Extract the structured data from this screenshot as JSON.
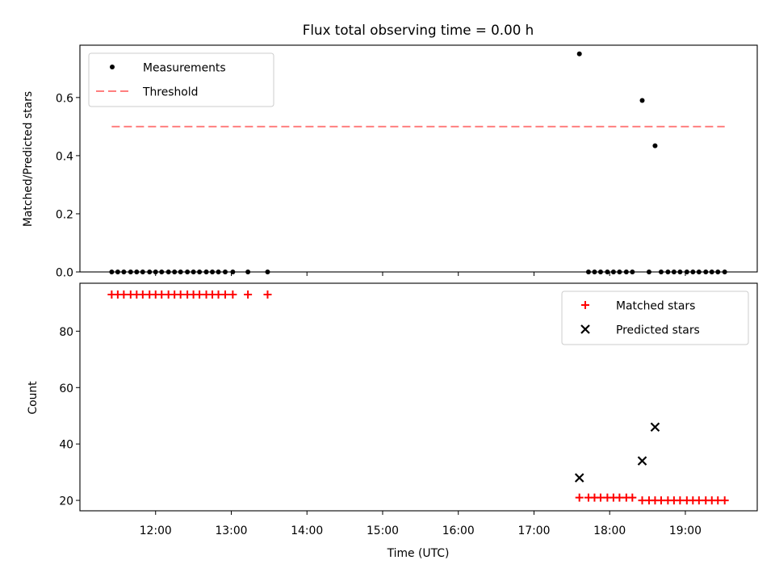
{
  "title": "Flux total observing time = 0.00 h",
  "colors": {
    "threshold": "#ff7f7f",
    "matched": "#ff0000",
    "predicted": "#000000",
    "measurements": "#000000",
    "legend_border": "#cccccc"
  },
  "chart_data": [
    {
      "type": "scatter",
      "ylabel": "Matched/Predicted stars",
      "xlim": [
        11.0,
        19.95
      ],
      "ylim": [
        0,
        0.78
      ],
      "yticks": [
        0.0,
        0.2,
        0.4,
        0.6
      ],
      "ytick_labels": [
        "0.0",
        "0.2",
        "0.4",
        "0.6"
      ],
      "legend": {
        "placement": "upper left",
        "entries": [
          "Measurements",
          "Threshold"
        ]
      },
      "series": [
        {
          "name": "Measurements",
          "marker": "dot",
          "x": [
            11.42,
            11.5,
            11.58,
            11.67,
            11.75,
            11.83,
            11.92,
            12.0,
            12.08,
            12.17,
            12.25,
            12.33,
            12.42,
            12.5,
            12.58,
            12.67,
            12.75,
            12.83,
            12.92,
            13.02,
            13.22,
            13.48,
            17.6,
            17.72,
            17.8,
            17.88,
            17.97,
            18.05,
            18.13,
            18.22,
            18.3,
            18.43,
            18.52,
            18.6,
            18.68,
            18.77,
            18.85,
            18.93,
            19.02,
            19.1,
            19.18,
            19.27,
            19.35,
            19.43,
            19.52
          ],
          "y": [
            0,
            0,
            0,
            0,
            0,
            0,
            0,
            0,
            0,
            0,
            0,
            0,
            0,
            0,
            0,
            0,
            0,
            0,
            0,
            0,
            0,
            0,
            0.75,
            0,
            0,
            0,
            0,
            0,
            0,
            0,
            0,
            0.59,
            0,
            0.434,
            0,
            0,
            0,
            0,
            0,
            0,
            0,
            0,
            0,
            0,
            0
          ]
        },
        {
          "name": "Threshold",
          "marker": "dashed-line",
          "x": [
            11.42,
            19.52
          ],
          "y": [
            0.5,
            0.5
          ]
        }
      ]
    },
    {
      "type": "scatter",
      "ylabel": "Count",
      "xlabel": "Time (UTC)",
      "xlim": [
        11.0,
        19.95
      ],
      "ylim": [
        16.3,
        97.0
      ],
      "xticks": [
        12,
        13,
        14,
        15,
        16,
        17,
        18,
        19
      ],
      "xtick_labels": [
        "12:00",
        "13:00",
        "14:00",
        "15:00",
        "16:00",
        "17:00",
        "18:00",
        "19:00"
      ],
      "yticks": [
        20,
        40,
        60,
        80
      ],
      "ytick_labels": [
        "20",
        "40",
        "60",
        "80"
      ],
      "legend": {
        "placement": "upper right",
        "entries": [
          "Matched stars",
          "Predicted stars"
        ]
      },
      "series": [
        {
          "name": "Matched stars",
          "marker": "plus",
          "x": [
            11.42,
            11.5,
            11.58,
            11.67,
            11.75,
            11.83,
            11.92,
            12.0,
            12.08,
            12.17,
            12.25,
            12.33,
            12.42,
            12.5,
            12.58,
            12.67,
            12.75,
            12.83,
            12.92,
            13.02,
            13.22,
            13.48,
            17.6,
            17.72,
            17.8,
            17.88,
            17.97,
            18.05,
            18.13,
            18.22,
            18.3,
            18.43,
            18.52,
            18.6,
            18.68,
            18.77,
            18.85,
            18.93,
            19.02,
            19.1,
            19.18,
            19.27,
            19.35,
            19.43,
            19.52
          ],
          "y": [
            93,
            93,
            93,
            93,
            93,
            93,
            93,
            93,
            93,
            93,
            93,
            93,
            93,
            93,
            93,
            93,
            93,
            93,
            93,
            93,
            93,
            93,
            21,
            21,
            21,
            21,
            21,
            21,
            21,
            21,
            21,
            20,
            20,
            20,
            20,
            20,
            20,
            20,
            20,
            20,
            20,
            20,
            20,
            20,
            20
          ]
        },
        {
          "name": "Predicted stars",
          "marker": "x",
          "x": [
            17.6,
            18.43,
            18.6
          ],
          "y": [
            28,
            34,
            46
          ]
        }
      ]
    }
  ]
}
